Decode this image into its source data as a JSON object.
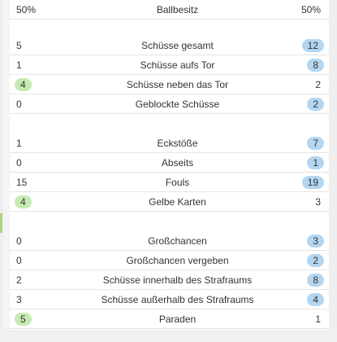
{
  "header": {
    "left": "50%",
    "label": "Ballbesitz",
    "right": "50%"
  },
  "groups": [
    [
      {
        "label": "Schüsse gesamt",
        "left": "5",
        "right": "12",
        "leader": "right"
      },
      {
        "label": "Schüsse aufs Tor",
        "left": "1",
        "right": "8",
        "leader": "right"
      },
      {
        "label": "Schüsse neben das Tor",
        "left": "4",
        "right": "2",
        "leader": "left"
      },
      {
        "label": "Geblockte Schüsse",
        "left": "0",
        "right": "2",
        "leader": "right"
      }
    ],
    [
      {
        "label": "Eckstöße",
        "left": "1",
        "right": "7",
        "leader": "right"
      },
      {
        "label": "Abseits",
        "left": "0",
        "right": "1",
        "leader": "right"
      },
      {
        "label": "Fouls",
        "left": "15",
        "right": "19",
        "leader": "right"
      },
      {
        "label": "Gelbe Karten",
        "left": "4",
        "right": "3",
        "leader": "left"
      }
    ],
    [
      {
        "label": "Großchancen",
        "left": "0",
        "right": "3",
        "leader": "right"
      },
      {
        "label": "Großchancen vergeben",
        "left": "0",
        "right": "2",
        "leader": "right"
      },
      {
        "label": "Schüsse innerhalb des Strafraums",
        "left": "2",
        "right": "8",
        "leader": "right"
      },
      {
        "label": "Schüsse außerhalb des Strafraums",
        "left": "3",
        "right": "4",
        "leader": "right"
      },
      {
        "label": "Paraden",
        "left": "5",
        "right": "1",
        "leader": "left"
      }
    ]
  ],
  "colors": {
    "home_highlight": "#c5ebb3",
    "away_highlight": "#b4d6f0"
  }
}
